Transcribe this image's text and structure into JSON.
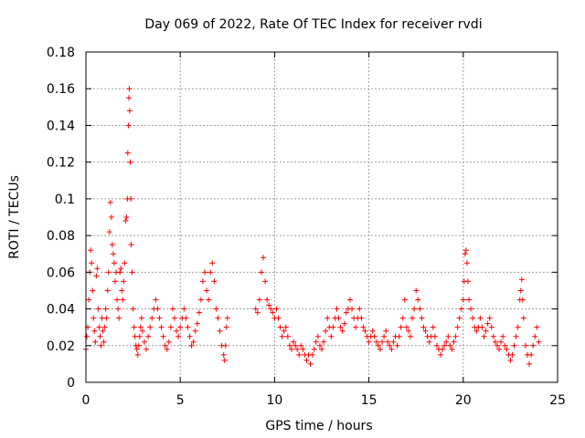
{
  "chart_data": {
    "type": "scatter",
    "title": "Day 069 of 2022, Rate Of TEC Index for receiver rvdi",
    "xlabel": "GPS time / hours",
    "ylabel": "ROTI / TECUs",
    "xlim": [
      0,
      25
    ],
    "ylim": [
      0,
      0.18
    ],
    "xticks": [
      "0",
      "5",
      "10",
      "15",
      "20",
      "25"
    ],
    "yticks": [
      "0",
      "0.02",
      "0.04",
      "0.06",
      "0.08",
      "0.1",
      "0.12",
      "0.14",
      "0.16",
      "0.18"
    ],
    "grid": true,
    "marker": "plus",
    "color": "#ff0000",
    "series": [
      {
        "points": [
          [
            0.0,
            0.018
          ],
          [
            0.05,
            0.025
          ],
          [
            0.1,
            0.03
          ],
          [
            0.15,
            0.045
          ],
          [
            0.2,
            0.06
          ],
          [
            0.25,
            0.072
          ],
          [
            0.3,
            0.065
          ],
          [
            0.35,
            0.05
          ],
          [
            0.4,
            0.035
          ],
          [
            0.45,
            0.028
          ],
          [
            0.5,
            0.022
          ],
          [
            0.55,
            0.058
          ],
          [
            0.6,
            0.062
          ],
          [
            0.65,
            0.04
          ],
          [
            0.7,
            0.03
          ],
          [
            0.75,
            0.025
          ],
          [
            0.8,
            0.02
          ],
          [
            0.85,
            0.035
          ],
          [
            0.9,
            0.028
          ],
          [
            0.95,
            0.022
          ],
          [
            1.0,
            0.03
          ],
          [
            1.05,
            0.04
          ],
          [
            1.1,
            0.035
          ],
          [
            1.15,
            0.05
          ],
          [
            1.2,
            0.06
          ],
          [
            1.25,
            0.082
          ],
          [
            1.3,
            0.098
          ],
          [
            1.35,
            0.09
          ],
          [
            1.4,
            0.075
          ],
          [
            1.45,
            0.07
          ],
          [
            1.5,
            0.065
          ],
          [
            1.55,
            0.055
          ],
          [
            1.6,
            0.06
          ],
          [
            1.65,
            0.045
          ],
          [
            1.7,
            0.04
          ],
          [
            1.75,
            0.035
          ],
          [
            1.8,
            0.06
          ],
          [
            1.85,
            0.062
          ],
          [
            1.9,
            0.05
          ],
          [
            1.95,
            0.045
          ],
          [
            2.0,
            0.055
          ],
          [
            2.05,
            0.065
          ],
          [
            2.1,
            0.088
          ],
          [
            2.15,
            0.09
          ],
          [
            2.2,
            0.1
          ],
          [
            2.22,
            0.125
          ],
          [
            2.25,
            0.14
          ],
          [
            2.28,
            0.155
          ],
          [
            2.3,
            0.16
          ],
          [
            2.32,
            0.148
          ],
          [
            2.35,
            0.12
          ],
          [
            2.38,
            0.1
          ],
          [
            2.4,
            0.075
          ],
          [
            2.45,
            0.06
          ],
          [
            2.5,
            0.04
          ],
          [
            2.55,
            0.03
          ],
          [
            2.6,
            0.025
          ],
          [
            2.65,
            0.02
          ],
          [
            2.7,
            0.018
          ],
          [
            2.75,
            0.015
          ],
          [
            2.8,
            0.02
          ],
          [
            2.85,
            0.025
          ],
          [
            2.9,
            0.03
          ],
          [
            2.95,
            0.035
          ],
          [
            3.0,
            0.028
          ],
          [
            3.1,
            0.022
          ],
          [
            3.2,
            0.018
          ],
          [
            3.3,
            0.025
          ],
          [
            3.4,
            0.03
          ],
          [
            3.5,
            0.035
          ],
          [
            3.6,
            0.04
          ],
          [
            3.7,
            0.045
          ],
          [
            3.8,
            0.04
          ],
          [
            3.9,
            0.035
          ],
          [
            4.0,
            0.03
          ],
          [
            4.1,
            0.025
          ],
          [
            4.2,
            0.02
          ],
          [
            4.3,
            0.018
          ],
          [
            4.4,
            0.022
          ],
          [
            4.5,
            0.03
          ],
          [
            4.6,
            0.04
          ],
          [
            4.7,
            0.035
          ],
          [
            4.8,
            0.028
          ],
          [
            4.9,
            0.025
          ],
          [
            5.0,
            0.03
          ],
          [
            5.1,
            0.035
          ],
          [
            5.2,
            0.04
          ],
          [
            5.3,
            0.035
          ],
          [
            5.4,
            0.03
          ],
          [
            5.5,
            0.025
          ],
          [
            5.6,
            0.02
          ],
          [
            5.7,
            0.022
          ],
          [
            5.8,
            0.028
          ],
          [
            5.9,
            0.032
          ],
          [
            6.0,
            0.038
          ],
          [
            6.1,
            0.045
          ],
          [
            6.2,
            0.055
          ],
          [
            6.3,
            0.06
          ],
          [
            6.4,
            0.05
          ],
          [
            6.5,
            0.045
          ],
          [
            6.6,
            0.06
          ],
          [
            6.7,
            0.065
          ],
          [
            6.8,
            0.055
          ],
          [
            6.9,
            0.04
          ],
          [
            7.0,
            0.035
          ],
          [
            7.1,
            0.028
          ],
          [
            7.2,
            0.02
          ],
          [
            7.3,
            0.015
          ],
          [
            7.35,
            0.012
          ],
          [
            7.4,
            0.02
          ],
          [
            7.45,
            0.03
          ],
          [
            7.5,
            0.035
          ],
          [
            9.0,
            0.04
          ],
          [
            9.1,
            0.038
          ],
          [
            9.2,
            0.045
          ],
          [
            9.3,
            0.06
          ],
          [
            9.4,
            0.068
          ],
          [
            9.5,
            0.055
          ],
          [
            9.6,
            0.045
          ],
          [
            9.7,
            0.042
          ],
          [
            9.8,
            0.04
          ],
          [
            9.9,
            0.038
          ],
          [
            10.0,
            0.035
          ],
          [
            10.1,
            0.04
          ],
          [
            10.2,
            0.035
          ],
          [
            10.3,
            0.03
          ],
          [
            10.4,
            0.025
          ],
          [
            10.5,
            0.028
          ],
          [
            10.6,
            0.03
          ],
          [
            10.7,
            0.025
          ],
          [
            10.8,
            0.02
          ],
          [
            10.9,
            0.018
          ],
          [
            11.0,
            0.022
          ],
          [
            11.1,
            0.02
          ],
          [
            11.2,
            0.018
          ],
          [
            11.3,
            0.015
          ],
          [
            11.4,
            0.02
          ],
          [
            11.5,
            0.018
          ],
          [
            11.6,
            0.015
          ],
          [
            11.7,
            0.012
          ],
          [
            11.8,
            0.015
          ],
          [
            11.9,
            0.01
          ],
          [
            12.0,
            0.015
          ],
          [
            12.1,
            0.018
          ],
          [
            12.2,
            0.022
          ],
          [
            12.3,
            0.025
          ],
          [
            12.4,
            0.02
          ],
          [
            12.5,
            0.018
          ],
          [
            12.6,
            0.022
          ],
          [
            12.7,
            0.028
          ],
          [
            12.8,
            0.035
          ],
          [
            12.9,
            0.03
          ],
          [
            13.0,
            0.025
          ],
          [
            13.1,
            0.03
          ],
          [
            13.2,
            0.035
          ],
          [
            13.3,
            0.04
          ],
          [
            13.4,
            0.035
          ],
          [
            13.5,
            0.03
          ],
          [
            13.6,
            0.028
          ],
          [
            13.7,
            0.032
          ],
          [
            13.8,
            0.038
          ],
          [
            13.9,
            0.04
          ],
          [
            14.0,
            0.045
          ],
          [
            14.1,
            0.04
          ],
          [
            14.2,
            0.035
          ],
          [
            14.3,
            0.03
          ],
          [
            14.4,
            0.035
          ],
          [
            14.5,
            0.04
          ],
          [
            14.6,
            0.035
          ],
          [
            14.7,
            0.03
          ],
          [
            14.8,
            0.028
          ],
          [
            14.9,
            0.025
          ],
          [
            15.0,
            0.022
          ],
          [
            15.1,
            0.025
          ],
          [
            15.2,
            0.028
          ],
          [
            15.3,
            0.025
          ],
          [
            15.4,
            0.022
          ],
          [
            15.5,
            0.02
          ],
          [
            15.6,
            0.018
          ],
          [
            15.7,
            0.022
          ],
          [
            15.8,
            0.025
          ],
          [
            15.9,
            0.028
          ],
          [
            16.0,
            0.022
          ],
          [
            16.1,
            0.02
          ],
          [
            16.2,
            0.018
          ],
          [
            16.3,
            0.022
          ],
          [
            16.4,
            0.025
          ],
          [
            16.5,
            0.02
          ],
          [
            16.6,
            0.025
          ],
          [
            16.7,
            0.03
          ],
          [
            16.8,
            0.035
          ],
          [
            16.9,
            0.045
          ],
          [
            17.0,
            0.03
          ],
          [
            17.1,
            0.028
          ],
          [
            17.2,
            0.025
          ],
          [
            17.3,
            0.035
          ],
          [
            17.4,
            0.04
          ],
          [
            17.5,
            0.05
          ],
          [
            17.6,
            0.045
          ],
          [
            17.7,
            0.04
          ],
          [
            17.8,
            0.035
          ],
          [
            17.9,
            0.03
          ],
          [
            18.0,
            0.028
          ],
          [
            18.1,
            0.025
          ],
          [
            18.2,
            0.022
          ],
          [
            18.3,
            0.025
          ],
          [
            18.4,
            0.03
          ],
          [
            18.5,
            0.025
          ],
          [
            18.6,
            0.02
          ],
          [
            18.7,
            0.018
          ],
          [
            18.8,
            0.015
          ],
          [
            18.9,
            0.018
          ],
          [
            19.0,
            0.02
          ],
          [
            19.1,
            0.022
          ],
          [
            19.2,
            0.025
          ],
          [
            19.3,
            0.02
          ],
          [
            19.4,
            0.018
          ],
          [
            19.5,
            0.022
          ],
          [
            19.6,
            0.025
          ],
          [
            19.7,
            0.03
          ],
          [
            19.8,
            0.035
          ],
          [
            19.9,
            0.04
          ],
          [
            20.0,
            0.045
          ],
          [
            20.05,
            0.055
          ],
          [
            20.1,
            0.07
          ],
          [
            20.15,
            0.072
          ],
          [
            20.2,
            0.065
          ],
          [
            20.25,
            0.055
          ],
          [
            20.3,
            0.045
          ],
          [
            20.4,
            0.04
          ],
          [
            20.5,
            0.035
          ],
          [
            20.6,
            0.03
          ],
          [
            20.7,
            0.028
          ],
          [
            20.8,
            0.03
          ],
          [
            20.9,
            0.035
          ],
          [
            21.0,
            0.03
          ],
          [
            21.1,
            0.025
          ],
          [
            21.2,
            0.028
          ],
          [
            21.3,
            0.032
          ],
          [
            21.4,
            0.035
          ],
          [
            21.5,
            0.03
          ],
          [
            21.6,
            0.025
          ],
          [
            21.7,
            0.022
          ],
          [
            21.8,
            0.02
          ],
          [
            21.9,
            0.018
          ],
          [
            22.0,
            0.022
          ],
          [
            22.1,
            0.025
          ],
          [
            22.2,
            0.02
          ],
          [
            22.3,
            0.018
          ],
          [
            22.4,
            0.015
          ],
          [
            22.5,
            0.012
          ],
          [
            22.6,
            0.015
          ],
          [
            22.7,
            0.02
          ],
          [
            22.8,
            0.025
          ],
          [
            22.9,
            0.03
          ],
          [
            23.0,
            0.045
          ],
          [
            23.05,
            0.05
          ],
          [
            23.1,
            0.056
          ],
          [
            23.15,
            0.045
          ],
          [
            23.2,
            0.035
          ],
          [
            23.3,
            0.02
          ],
          [
            23.4,
            0.015
          ],
          [
            23.5,
            0.01
          ],
          [
            23.6,
            0.015
          ],
          [
            23.7,
            0.02
          ],
          [
            23.8,
            0.025
          ],
          [
            23.9,
            0.03
          ],
          [
            24.0,
            0.022
          ]
        ]
      }
    ]
  }
}
